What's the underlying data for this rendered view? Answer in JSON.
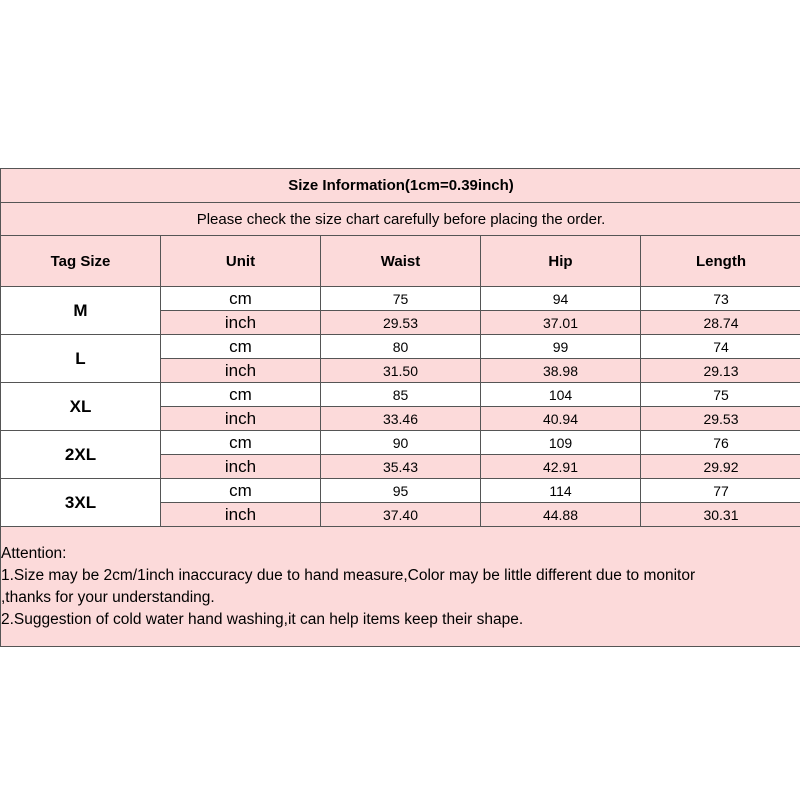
{
  "title": "Size Information(1cm=0.39inch)",
  "subtitle": "Please check the size chart carefully before placing the order.",
  "headers": [
    "Tag Size",
    "Unit",
    "Waist",
    "Hip",
    "Length"
  ],
  "rows": [
    {
      "size": "M",
      "cm": [
        "75",
        "94",
        "73"
      ],
      "inch": [
        "29.53",
        "37.01",
        "28.74"
      ]
    },
    {
      "size": "L",
      "cm": [
        "80",
        "99",
        "74"
      ],
      "inch": [
        "31.50",
        "38.98",
        "29.13"
      ]
    },
    {
      "size": "XL",
      "cm": [
        "85",
        "104",
        "75"
      ],
      "inch": [
        "33.46",
        "40.94",
        "29.53"
      ]
    },
    {
      "size": "2XL",
      "cm": [
        "90",
        "109",
        "76"
      ],
      "inch": [
        "35.43",
        "42.91",
        "29.92"
      ]
    },
    {
      "size": "3XL",
      "cm": [
        "95",
        "114",
        "77"
      ],
      "inch": [
        "37.40",
        "44.88",
        "30.31"
      ]
    }
  ],
  "unit_labels": {
    "cm": "cm",
    "inch": "inch"
  },
  "attention": [
    "Attention:",
    "1.Size may be 2cm/1inch inaccuracy due to hand measure,Color may be little different due to monitor",
    ",thanks for your understanding.",
    "2.Suggestion of cold water hand washing,it can help items keep their shape."
  ],
  "colors": {
    "pink": "#fcdada",
    "border": "#555555"
  }
}
